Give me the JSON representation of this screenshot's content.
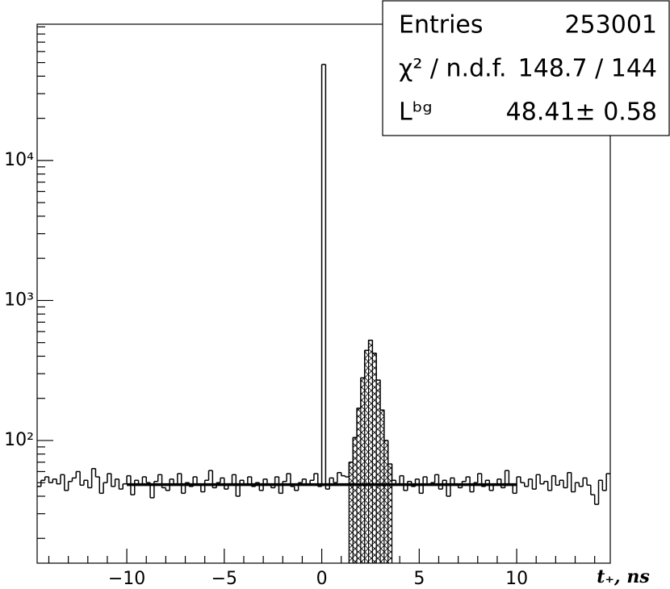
{
  "chart_data": {
    "type": "histogram",
    "xlabel": "t₊, ns",
    "bins": [
      -14.6,
      -14.4,
      -14.2,
      -14.0,
      -13.8,
      -13.6,
      -13.4,
      -13.2,
      -13.0,
      -12.8,
      -12.6,
      -12.4,
      -12.2,
      -12.0,
      -11.8,
      -11.6,
      -11.4,
      -11.2,
      -11.0,
      -10.8,
      -10.6,
      -10.4,
      -10.2,
      -10.0,
      -9.8,
      -9.6,
      -9.4,
      -9.2,
      -9.0,
      -8.8,
      -8.6,
      -8.4,
      -8.2,
      -8.0,
      -7.8,
      -7.6,
      -7.4,
      -7.2,
      -7.0,
      -6.8,
      -6.6,
      -6.4,
      -6.2,
      -6.0,
      -5.8,
      -5.6,
      -5.4,
      -5.2,
      -5.0,
      -4.8,
      -4.6,
      -4.4,
      -4.2,
      -4.0,
      -3.8,
      -3.6,
      -3.4,
      -3.2,
      -3.0,
      -2.8,
      -2.6,
      -2.4,
      -2.2,
      -2.0,
      -1.8,
      -1.6,
      -1.4,
      -1.2,
      -1.0,
      -0.8,
      -0.6,
      -0.4,
      -0.2,
      0.0,
      0.2,
      0.4,
      0.6,
      0.8,
      1.0,
      1.2,
      1.4,
      1.6,
      1.8,
      2.0,
      2.2,
      2.4,
      2.6,
      2.8,
      3.0,
      3.2,
      3.4,
      3.6,
      3.8,
      4.0,
      4.2,
      4.4,
      4.6,
      4.8,
      5.0,
      5.2,
      5.4,
      5.6,
      5.8,
      6.0,
      6.2,
      6.4,
      6.6,
      6.8,
      7.0,
      7.2,
      7.4,
      7.6,
      7.8,
      8.0,
      8.2,
      8.4,
      8.6,
      8.8,
      9.0,
      9.2,
      9.4,
      9.6,
      9.8,
      10.0,
      10.2,
      10.4,
      10.6,
      10.8,
      11.0,
      11.2,
      11.4,
      11.6,
      11.8,
      12.0,
      12.2,
      12.4,
      12.6,
      12.8,
      13.0,
      13.2,
      13.4,
      13.6,
      13.8,
      14.0,
      14.2,
      14.4,
      14.6,
      14.8
    ],
    "counts": [
      47,
      52,
      55,
      50,
      53,
      49,
      57,
      44,
      51,
      54,
      60,
      48,
      52,
      46,
      63,
      55,
      42,
      50,
      58,
      47,
      53,
      45,
      49,
      56,
      41,
      52,
      48,
      55,
      50,
      39,
      51,
      57,
      46,
      44,
      53,
      49,
      58,
      42,
      50,
      47,
      55,
      48,
      43,
      52,
      61,
      46,
      50,
      54,
      45,
      49,
      57,
      40,
      52,
      48,
      55,
      47,
      50,
      44,
      53,
      49,
      46,
      55,
      42,
      51,
      58,
      47,
      44,
      50,
      53,
      48,
      52,
      58,
      47,
      48500,
      45,
      54,
      50,
      59,
      56,
      55,
      70,
      105,
      170,
      280,
      440,
      520,
      420,
      270,
      165,
      100,
      68,
      52,
      49,
      56,
      44,
      51,
      47,
      53,
      42,
      55,
      48,
      50,
      57,
      45,
      52,
      40,
      54,
      49,
      46,
      51,
      55,
      43,
      50,
      58,
      47,
      52,
      44,
      49,
      53,
      46,
      61,
      48,
      42,
      55,
      50,
      47,
      53,
      45,
      57,
      49,
      51,
      44,
      56,
      48,
      52,
      46,
      59,
      43,
      50,
      47,
      54,
      48,
      41,
      35,
      52,
      44,
      58
    ],
    "color": "#000000",
    "signal_region": [
      1.4,
      3.6
    ],
    "fit_line": {
      "value": 48.41,
      "x": [
        -10,
        10
      ]
    },
    "xlim": [
      -14.6,
      14.8
    ],
    "xticks": [
      {
        "value": -10,
        "label": "−10"
      },
      {
        "value": -5,
        "label": "−5"
      },
      0,
      5,
      10
    ],
    "xminorticks": [
      -14,
      -13,
      -12,
      -11,
      -9,
      -8,
      -7,
      -6,
      -4,
      -3,
      -2,
      -1,
      1,
      2,
      3,
      4,
      6,
      7,
      8,
      9,
      11,
      12,
      13,
      14
    ],
    "ylim": [
      13.3,
      94000
    ],
    "log_y": true,
    "yticks": [
      {
        "value": 100,
        "label": "10²"
      },
      {
        "value": 1000,
        "label": "10³"
      },
      {
        "value": 10000,
        "label": "10⁴"
      }
    ],
    "yminorticks": [
      20,
      30,
      40,
      50,
      60,
      70,
      80,
      90,
      200,
      300,
      400,
      500,
      600,
      700,
      800,
      900,
      2000,
      3000,
      4000,
      5000,
      6000,
      7000,
      8000,
      9000,
      20000,
      30000,
      40000,
      50000,
      60000,
      70000,
      80000,
      90000
    ],
    "stats": [
      {
        "label": "Entries",
        "value": "253001"
      },
      {
        "label": "χ² / n.d.f.",
        "value": "148.7 / 144"
      },
      {
        "label": "Lᵇᵍ",
        "value": "48.41± 0.58"
      }
    ]
  }
}
